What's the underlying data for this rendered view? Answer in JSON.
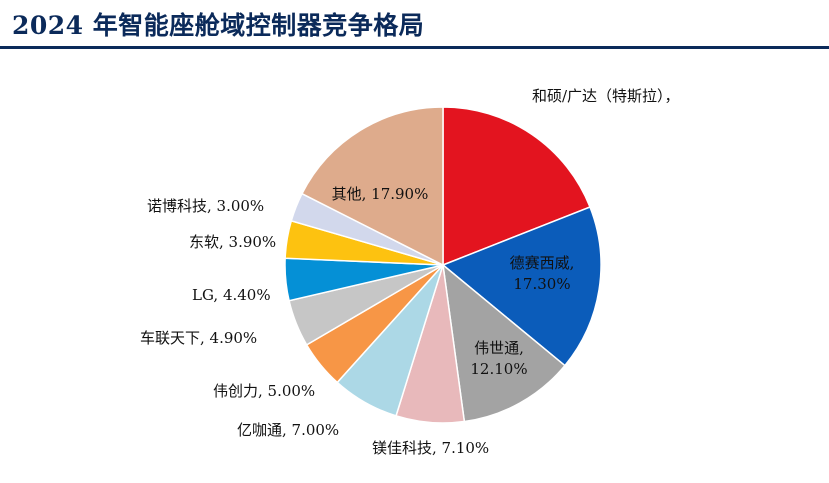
{
  "title": "2024 年智能座舱域控制器竞争格局",
  "chart_data": {
    "type": "pie",
    "title": "2024 年智能座舱域控制器竞争格局",
    "start_angle_deg": 0,
    "direction": "clockwise",
    "slices": [
      {
        "label": "和硕/广达（特斯拉），",
        "value": 19.4,
        "value_label": "",
        "color": "#e3141f"
      },
      {
        "label": "德赛西威,",
        "value": 17.3,
        "value_label": "17.30%",
        "color": "#0b5cba"
      },
      {
        "label": "伟世通,",
        "value": 12.1,
        "value_label": "12.10%",
        "color": "#a3a3a3"
      },
      {
        "label": "镁佳科技, ",
        "value": 7.1,
        "value_label": "7.10%",
        "color": "#e8b9bb"
      },
      {
        "label": "亿咖通, ",
        "value": 7.0,
        "value_label": "7.00%",
        "color": "#acd8e6"
      },
      {
        "label": "伟创力, ",
        "value": 5.0,
        "value_label": "5.00%",
        "color": "#f79646"
      },
      {
        "label": "车联天下, ",
        "value": 4.9,
        "value_label": "4.90%",
        "color": "#c6c6c6"
      },
      {
        "label": "LG, ",
        "value": 4.4,
        "value_label": "4.40%",
        "color": "#0590d6"
      },
      {
        "label": "东软, ",
        "value": 3.9,
        "value_label": "3.90%",
        "color": "#fdc210"
      },
      {
        "label": "诺博科技, ",
        "value": 3.0,
        "value_label": "3.00%",
        "color": "#d2d8ec"
      },
      {
        "label": "其他, ",
        "value": 17.9,
        "value_label": "17.90%",
        "color": "#deab8c"
      }
    ]
  }
}
